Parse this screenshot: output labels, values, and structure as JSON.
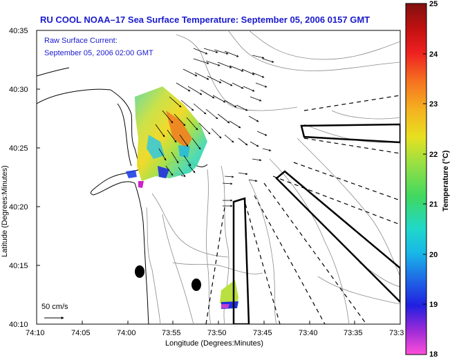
{
  "title": "RU COOL  NOAA–17  Sea Surface Temperature:  September 05, 2006 0157 GMT",
  "subtitle_line1": "Raw Surface Current:",
  "subtitle_line2": "September 05, 2006 02:00 GMT",
  "x_axis": {
    "label": "Longitude (Degrees:Minutes)",
    "ticks": [
      "74:10",
      "74:05",
      "74:00",
      "73:55",
      "73:50",
      "73:45",
      "73:40",
      "73:35",
      "73:3"
    ]
  },
  "y_axis": {
    "label": "Latitude (Degrees:Minutes)",
    "ticks": [
      "40:35",
      "40:30",
      "40:25",
      "40:20",
      "40:15",
      "40:10"
    ]
  },
  "colorbar": {
    "label": "Temperature (°C)",
    "ticks": [
      "25",
      "24",
      "23",
      "22",
      "21",
      "20",
      "19",
      "18"
    ],
    "range": [
      18,
      25
    ]
  },
  "scale_label": "50 cm/s",
  "colors": {
    "title": "#1a1acd",
    "coast": "#000000",
    "bathymetry": "#888888"
  },
  "chart_data": {
    "type": "map",
    "xlim": [
      "74:10",
      "73:30"
    ],
    "ylim": [
      "40:10",
      "40:35"
    ],
    "variable": "Sea Surface Temperature",
    "units": "°C",
    "color_range": [
      18,
      25
    ]
  }
}
